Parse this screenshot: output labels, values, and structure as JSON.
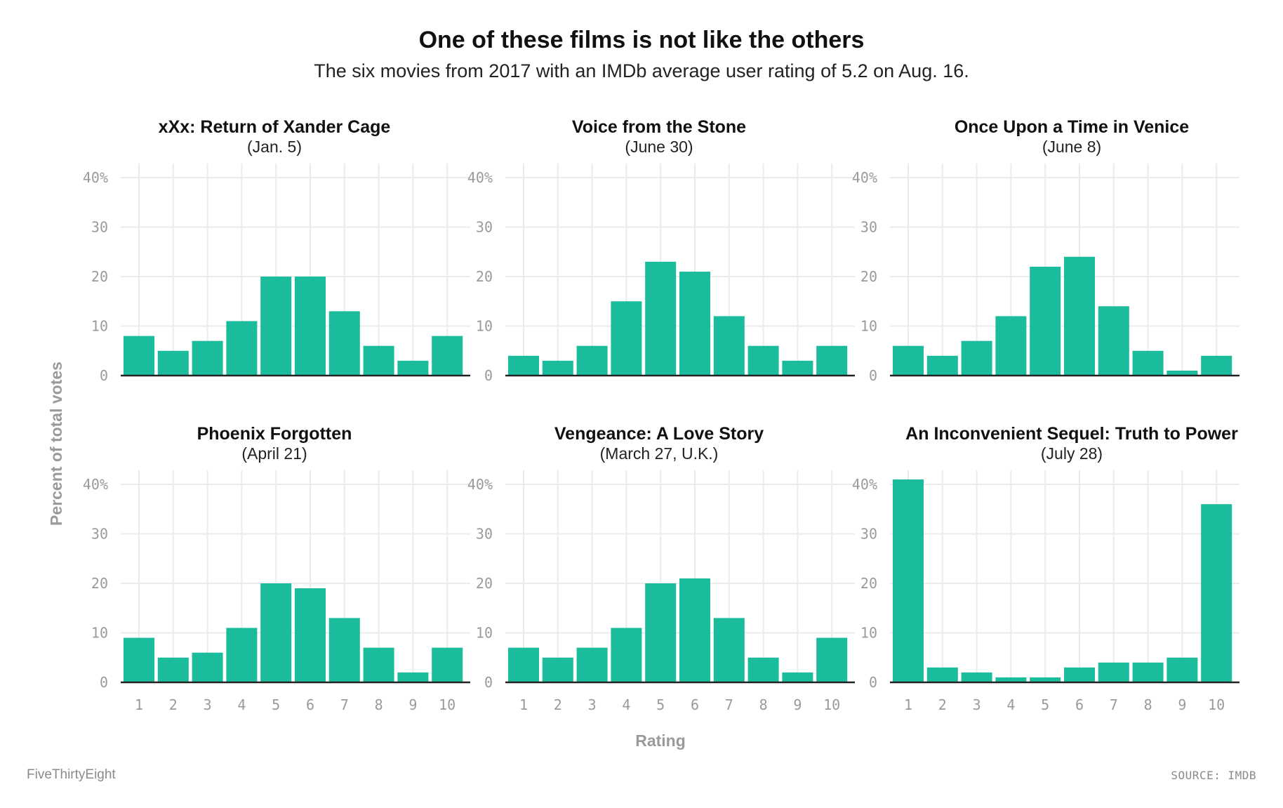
{
  "title": "One of these films is not like the others",
  "subtitle": "The six movies from 2017 with an IMDb average user rating of 5.2 on Aug. 16.",
  "footer": {
    "brand": "FiveThirtyEight",
    "source": "SOURCE: IMDB"
  },
  "colors": {
    "bar": "#1abc9c",
    "grid": "#ebebeb",
    "baseline": "#222222"
  },
  "chart_data": {
    "type": "bar",
    "xlabel": "Rating",
    "ylabel": "Percent of total votes",
    "ylim": [
      0,
      40
    ],
    "yticks": [
      "0",
      "10",
      "20",
      "30",
      "40%"
    ],
    "ytick_values": [
      0,
      10,
      20,
      30,
      40
    ],
    "categories": [
      "1",
      "2",
      "3",
      "4",
      "5",
      "6",
      "7",
      "8",
      "9",
      "10"
    ],
    "grid": true,
    "panels": [
      {
        "title": "xXx: Return of Xander Cage",
        "subtitle": "(Jan. 5)",
        "values": [
          8,
          5,
          7,
          11,
          20,
          20,
          13,
          6,
          3,
          8
        ]
      },
      {
        "title": "Voice from the Stone",
        "subtitle": "(June 30)",
        "values": [
          4,
          3,
          6,
          15,
          23,
          21,
          12,
          6,
          3,
          6
        ]
      },
      {
        "title": "Once Upon a Time in Venice",
        "subtitle": "(June 8)",
        "values": [
          6,
          4,
          7,
          12,
          22,
          24,
          14,
          5,
          1,
          4
        ]
      },
      {
        "title": "Phoenix Forgotten",
        "subtitle": "(April 21)",
        "values": [
          9,
          5,
          6,
          11,
          20,
          19,
          13,
          7,
          2,
          7
        ]
      },
      {
        "title": "Vengeance: A Love Story",
        "subtitle": "(March 27, U.K.)",
        "values": [
          7,
          5,
          7,
          11,
          20,
          21,
          13,
          5,
          2,
          9
        ]
      },
      {
        "title": "An Inconvenient Sequel: Truth to Power",
        "subtitle": "(July 28)",
        "values": [
          41,
          3,
          2,
          1,
          1,
          3,
          4,
          4,
          5,
          36
        ]
      }
    ]
  }
}
